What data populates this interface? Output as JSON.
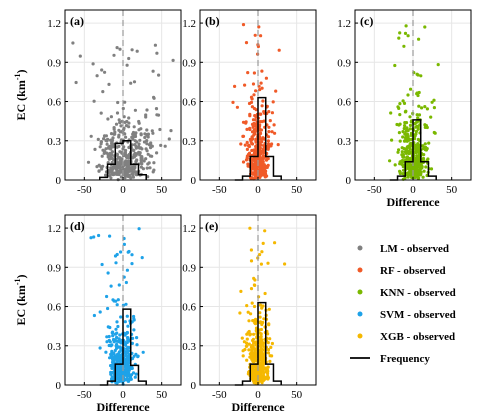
{
  "chart_data": {
    "type": "scatter",
    "ylabel_main": "EC",
    "ylabel_unit": "(km",
    "ylabel_exp": "-1",
    "ylabel_close": ")",
    "xlabel": "Difference",
    "xlim": [
      -75,
      75
    ],
    "ylim": [
      0,
      1.3
    ],
    "xticks": [
      "-50",
      "0",
      "50"
    ],
    "yticks": [
      "0",
      "0.3",
      "0.6",
      "0.9",
      "1.2"
    ],
    "xtick_values": [
      -50,
      0,
      50
    ],
    "ytick_values": [
      0,
      0.3,
      0.6,
      0.9,
      1.2
    ],
    "grid": true,
    "legend_placement": "bottom-right",
    "frequency_bins": [
      -30,
      -20,
      -10,
      0,
      10,
      20,
      30
    ],
    "panels": [
      {
        "label": "(a)",
        "series": "LM - observed",
        "color": "#808080",
        "frequency": [
          0.02,
          0.12,
          0.28,
          0.3,
          0.12,
          0.04
        ],
        "spread": 22,
        "xshift": 2,
        "slope": 0.01
      },
      {
        "label": "(b)",
        "series": "RF  - observed",
        "color": "#f05a28",
        "frequency": [
          0.0,
          0.03,
          0.18,
          0.63,
          0.18,
          0.03
        ],
        "spread": 9,
        "xshift": 0,
        "slope": 0.0
      },
      {
        "label": "(c)",
        "series": "KNN - observed",
        "color": "#7ab800",
        "frequency": [
          0.0,
          0.03,
          0.14,
          0.46,
          0.14,
          0.03
        ],
        "spread": 12,
        "xshift": 0,
        "slope": 0.0
      },
      {
        "label": "(d)",
        "series": "SVM - observed",
        "color": "#1ea2e8",
        "frequency": [
          0.0,
          0.03,
          0.16,
          0.58,
          0.15,
          0.03
        ],
        "spread": 10,
        "xshift": -2,
        "slope": 0.0
      },
      {
        "label": "(e)",
        "series": "XGB - observed",
        "color": "#f5b800",
        "frequency": [
          0.0,
          0.03,
          0.16,
          0.63,
          0.16,
          0.03
        ],
        "spread": 8,
        "xshift": 0,
        "slope": 0.0
      }
    ],
    "legend": [
      {
        "name": "LM - observed",
        "color": "#808080",
        "kind": "dot"
      },
      {
        "name": "RF  - observed",
        "color": "#f05a28",
        "kind": "dot"
      },
      {
        "name": "KNN - observed",
        "color": "#7ab800",
        "kind": "dot"
      },
      {
        "name": "SVM - observed",
        "color": "#1ea2e8",
        "kind": "dot"
      },
      {
        "name": "XGB - observed",
        "color": "#f5b800",
        "kind": "dot"
      },
      {
        "name": "Frequency",
        "color": "#000000",
        "kind": "line"
      }
    ],
    "points_per_panel": 420
  }
}
